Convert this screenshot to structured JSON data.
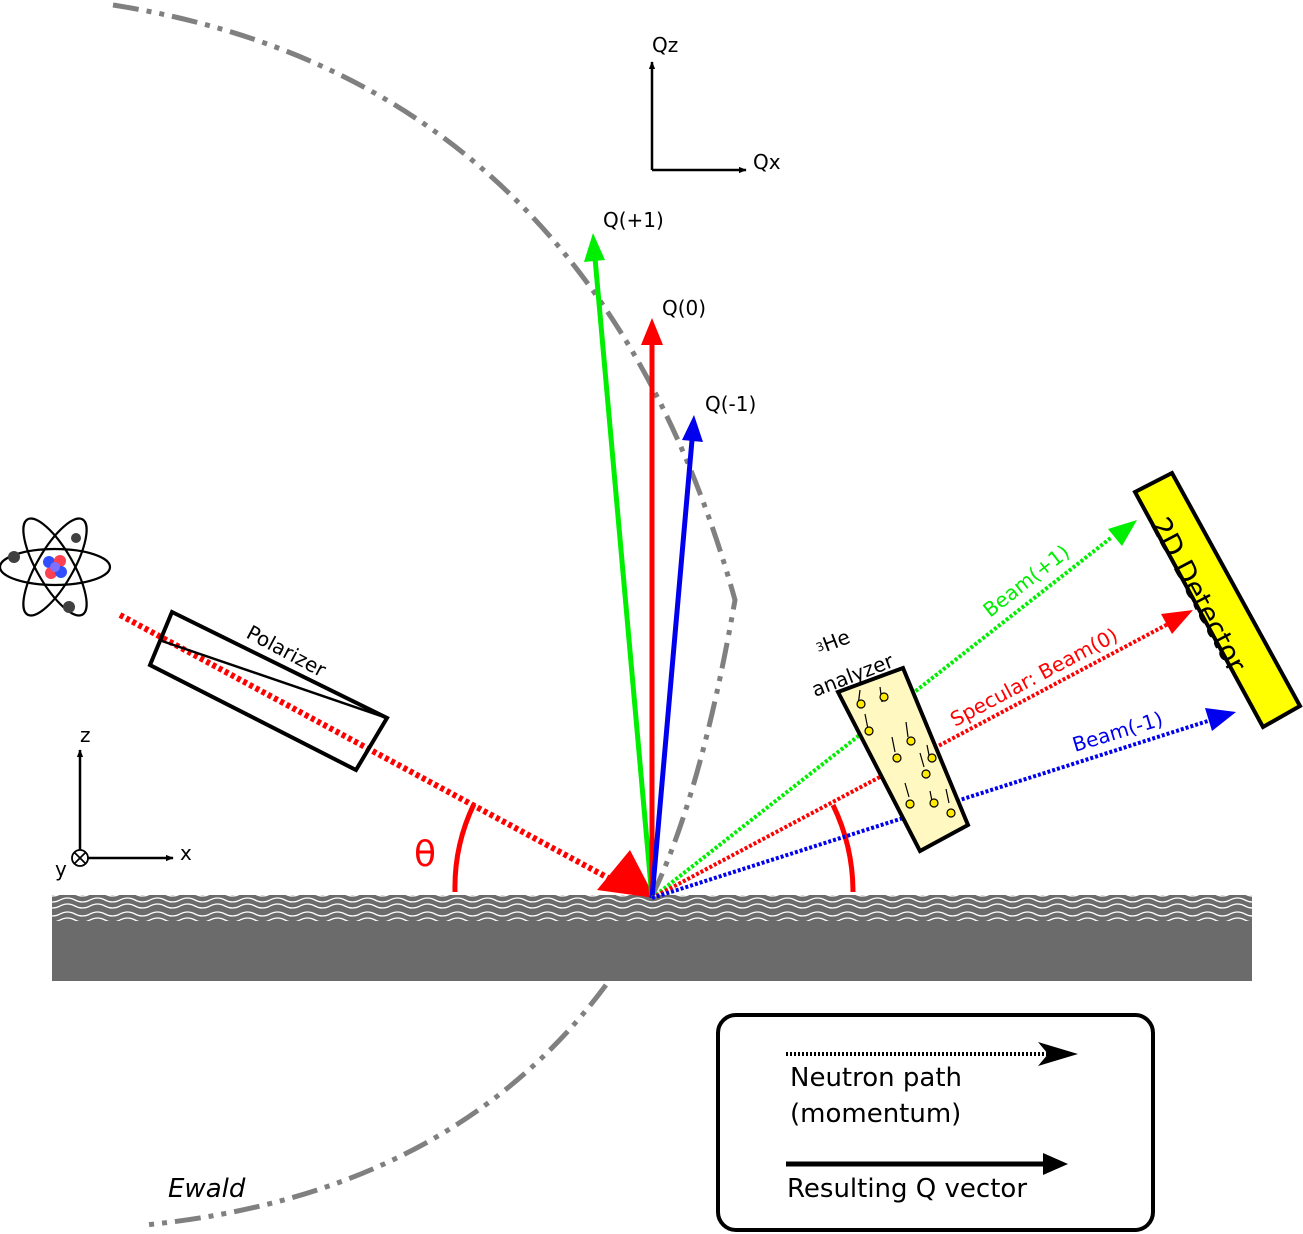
{
  "labels": {
    "qz": "Qz",
    "qx": "Qx",
    "q_plus1": "Q(+1)",
    "q_zero": "Q(0)",
    "q_minus1": "Q(-1)",
    "polarizer": "Polarizer",
    "analyzer_sup": "3",
    "analyzer_line1": "He",
    "analyzer_line2": "analyzer",
    "beam_plus1": "Beam(+1)",
    "beam_zero": "Specular: Beam(0)",
    "beam_minus1": "Beam(-1)",
    "detector": "2D Detector",
    "theta_left": "θ",
    "axis_z": "z",
    "axis_x": "x",
    "axis_y": "y",
    "ewald": "Ewald"
  },
  "legend": {
    "neutron_path_line1": "Neutron path",
    "neutron_path_line2": "(momentum)",
    "q_vector": "Resulting Q vector"
  },
  "colors": {
    "order_plus1": "#00ee00",
    "order_zero": "#ff0000",
    "order_minus1": "#0000ee",
    "ewald": "#808080",
    "substrate": "#6b6b6b",
    "detector": "#ffff00",
    "analyzer_fill": "#fff8c0"
  },
  "icons": [
    "atom-icon",
    "spin-arrow-icon"
  ]
}
